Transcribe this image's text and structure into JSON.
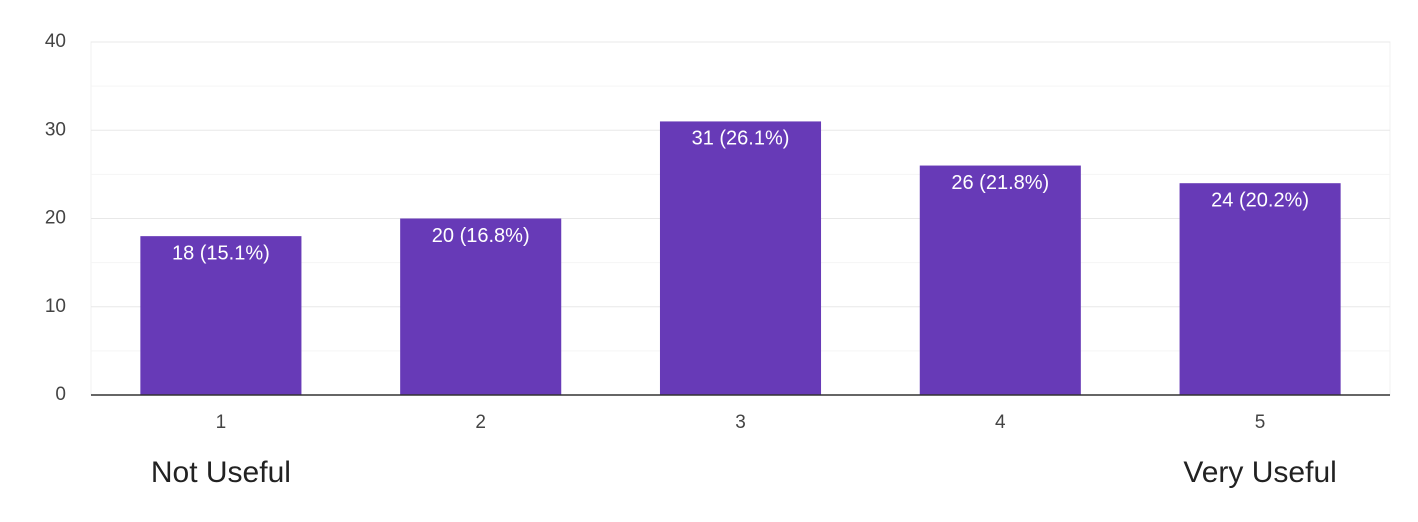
{
  "chart_data": {
    "type": "bar",
    "categories": [
      "1",
      "2",
      "3",
      "4",
      "5"
    ],
    "values": [
      18,
      20,
      31,
      26,
      24
    ],
    "value_labels": [
      "18 (15.1%)",
      "20 (16.8%)",
      "31 (26.1%)",
      "26 (21.8%)",
      "24 (20.2%)"
    ],
    "color": "#673ab7",
    "ylim": [
      0,
      40
    ],
    "yticks": [
      0,
      10,
      20,
      30,
      40
    ],
    "minor_yticks": [
      5,
      15,
      25,
      35
    ],
    "grid": true,
    "annotations": [
      "Not Useful",
      "Very Useful"
    ]
  }
}
